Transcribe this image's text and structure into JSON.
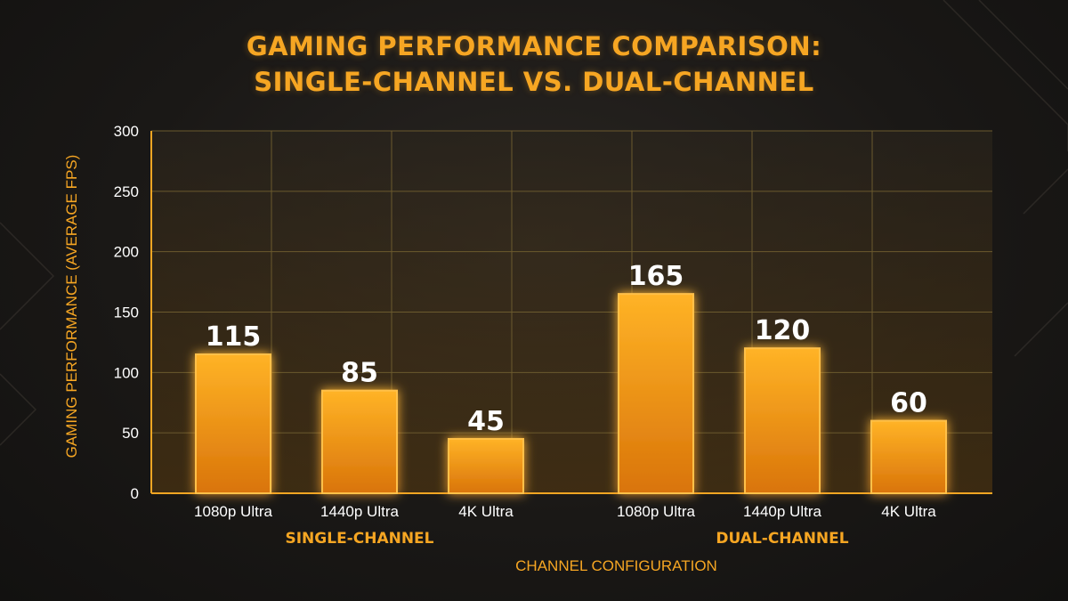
{
  "title_lines": [
    "GAMING PERFORMANCE COMPARISON:",
    "SINGLE-CHANNEL VS. DUAL-CHANNEL"
  ],
  "colors": {
    "accent": "#f6a623",
    "bar_top": "#ffb326",
    "bar_bottom": "#e07d08",
    "grid": "#6b5a2e"
  },
  "chart_data": {
    "type": "bar",
    "xlabel": "CHANNEL CONFIGURATION",
    "ylabel": "GAMING PERFORMANCE (AVERAGE FPS)",
    "ylim": [
      0,
      300
    ],
    "yticks": [
      0,
      50,
      100,
      150,
      200,
      250,
      300
    ],
    "grid": true,
    "groups": [
      {
        "name": "SINGLE-CHANNEL",
        "categories": [
          "1080p Ultra",
          "1440p Ultra",
          "4K Ultra"
        ],
        "values": [
          115,
          85,
          45
        ]
      },
      {
        "name": "DUAL-CHANNEL",
        "categories": [
          "1080p Ultra",
          "1440p Ultra",
          "4K Ultra"
        ],
        "values": [
          165,
          120,
          60
        ]
      }
    ]
  }
}
